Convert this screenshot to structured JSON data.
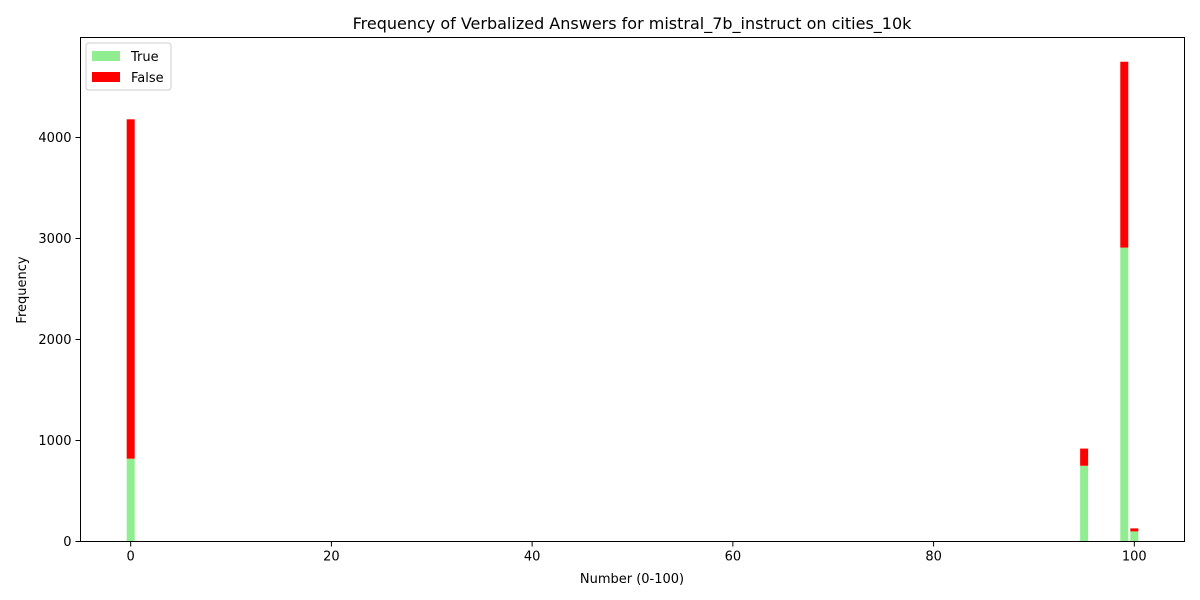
{
  "chart_data": {
    "type": "bar",
    "stacked": true,
    "title": "Frequency of Verbalized Answers for mistral_7b_instruct on cities_10k",
    "xlabel": "Number (0-100)",
    "ylabel": "Frequency",
    "xlim": [
      -5,
      105
    ],
    "ylim": [
      0,
      4990
    ],
    "xticks": [
      0,
      20,
      40,
      60,
      80,
      100
    ],
    "yticks": [
      0,
      1000,
      2000,
      3000,
      4000
    ],
    "legend": {
      "position": "top-left",
      "entries": [
        "True",
        "False"
      ]
    },
    "grid": false,
    "x": [
      0,
      95,
      99,
      100
    ],
    "series": [
      {
        "name": "True",
        "color": "#90ee90",
        "values": [
          820,
          750,
          2910,
          100
        ]
      },
      {
        "name": "False",
        "color": "#ff0000",
        "values": [
          3360,
          170,
          1840,
          30
        ]
      }
    ]
  }
}
